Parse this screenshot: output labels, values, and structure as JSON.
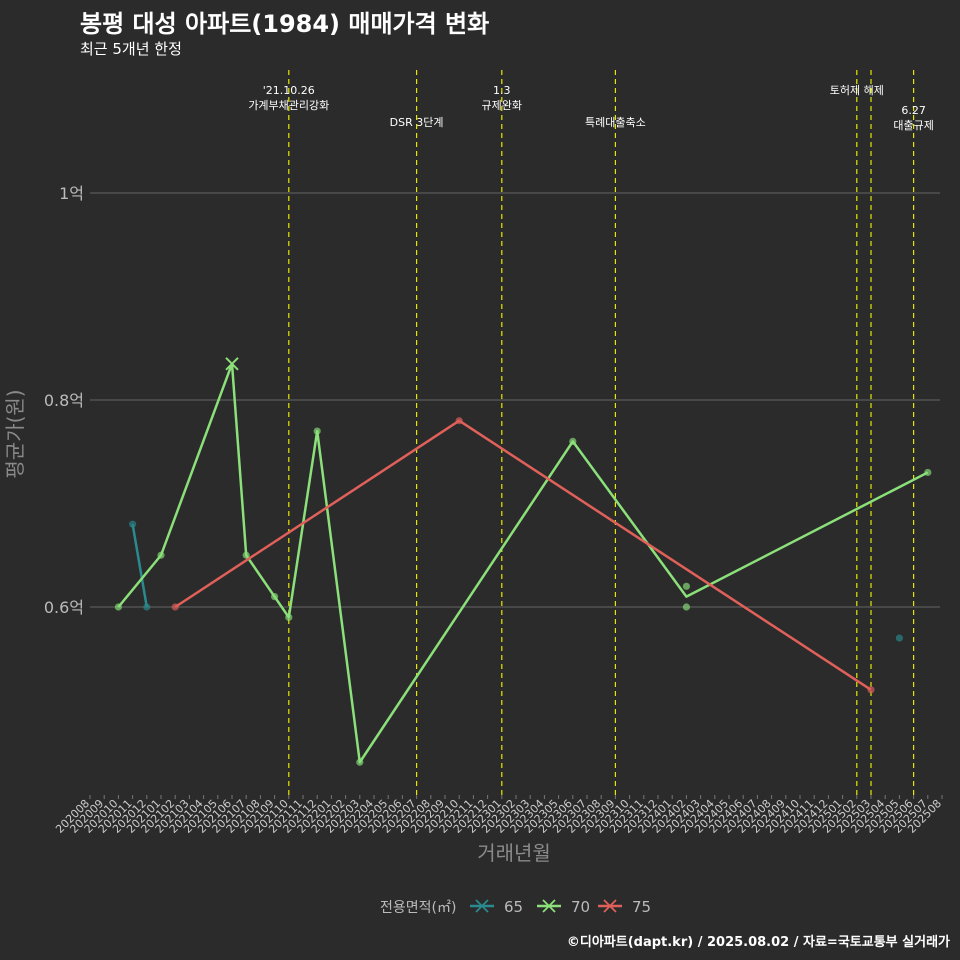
{
  "title": "봉평 대성 아파트(1984) 매매가격 변화",
  "subtitle": "최근 5개년 한정",
  "caption": "©디아파트(dapt.kr) / 2025.08.02 / 자료=국토교통부 실거래가",
  "chart_data": {
    "type": "line",
    "xlabel": "거래년월",
    "ylabel": "평균가(원)",
    "x_categories": [
      "202008",
      "202009",
      "202010",
      "202011",
      "202012",
      "202101",
      "202102",
      "202103",
      "202104",
      "202105",
      "202106",
      "202107",
      "202108",
      "202109",
      "202110",
      "202111",
      "202112",
      "202201",
      "202202",
      "202203",
      "202204",
      "202205",
      "202206",
      "202207",
      "202208",
      "202209",
      "202210",
      "202211",
      "202212",
      "202301",
      "202302",
      "202303",
      "202304",
      "202305",
      "202306",
      "202307",
      "202308",
      "202309",
      "202310",
      "202311",
      "202312",
      "202401",
      "202402",
      "202403",
      "202404",
      "202405",
      "202406",
      "202407",
      "202408",
      "202409",
      "202410",
      "202411",
      "202412",
      "202501",
      "202502",
      "202503",
      "202504",
      "202505",
      "202506",
      "202507",
      "202508"
    ],
    "y_ticks": [
      {
        "value": 0.6,
        "label": "0.6억"
      },
      {
        "value": 0.8,
        "label": "0.8억"
      },
      {
        "value": 1.0,
        "label": "1억"
      }
    ],
    "ylim": [
      0.42,
      1.12
    ],
    "grid": true,
    "legend": {
      "title": "전용면적(㎡)",
      "position": "bottom"
    },
    "series": [
      {
        "name": "65",
        "color": "#2a8a8e",
        "line": [
          {
            "x": "202011",
            "y": 0.68
          },
          {
            "x": "202012",
            "y": 0.6
          }
        ],
        "points": [
          {
            "x": "202011",
            "y": 0.68
          },
          {
            "x": "202012",
            "y": 0.6
          },
          {
            "x": "202505",
            "y": 0.57
          }
        ],
        "marks": []
      },
      {
        "name": "70",
        "color": "#8be07a",
        "line": [
          {
            "x": "202010",
            "y": 0.6
          },
          {
            "x": "202101",
            "y": 0.65
          },
          {
            "x": "202106",
            "y": 0.835
          },
          {
            "x": "202107",
            "y": 0.65
          },
          {
            "x": "202109",
            "y": 0.61
          },
          {
            "x": "202110",
            "y": 0.59
          },
          {
            "x": "202112",
            "y": 0.77
          },
          {
            "x": "202203",
            "y": 0.45
          },
          {
            "x": "202306",
            "y": 0.76
          },
          {
            "x": "202402",
            "y": 0.61
          },
          {
            "x": "202507",
            "y": 0.73
          }
        ],
        "points": [
          {
            "x": "202010",
            "y": 0.6
          },
          {
            "x": "202101",
            "y": 0.65
          },
          {
            "x": "202107",
            "y": 0.65
          },
          {
            "x": "202109",
            "y": 0.61
          },
          {
            "x": "202110",
            "y": 0.59
          },
          {
            "x": "202112",
            "y": 0.77
          },
          {
            "x": "202203",
            "y": 0.45
          },
          {
            "x": "202306",
            "y": 0.76
          },
          {
            "x": "202402",
            "y": 0.62
          },
          {
            "x": "202402",
            "y": 0.6
          },
          {
            "x": "202507",
            "y": 0.73
          }
        ],
        "marks": [
          {
            "x": "202106",
            "y": 0.835
          }
        ]
      },
      {
        "name": "75",
        "color": "#e0605a",
        "line": [
          {
            "x": "202102",
            "y": 0.6
          },
          {
            "x": "202210",
            "y": 0.78
          },
          {
            "x": "202503",
            "y": 0.52
          }
        ],
        "points": [
          {
            "x": "202102",
            "y": 0.6
          },
          {
            "x": "202210",
            "y": 0.78
          },
          {
            "x": "202503",
            "y": 0.52
          }
        ],
        "marks": []
      }
    ],
    "events": [
      {
        "x": "202110",
        "lines": [
          "'21.10.26",
          "가계부채관리강화"
        ],
        "row": 0
      },
      {
        "x": "202207",
        "lines": [
          "DSR 3단계"
        ],
        "row": 1
      },
      {
        "x": "202301",
        "lines": [
          "1.3",
          "규제완화"
        ],
        "row": 0
      },
      {
        "x": "202309",
        "lines": [
          "특례대출축소"
        ],
        "row": 1
      },
      {
        "x": "202502",
        "lines": [
          "토허제 해제"
        ],
        "row": 0
      },
      {
        "x": "202503",
        "lines": [],
        "row": 0
      },
      {
        "x": "202506",
        "lines": [
          "6.27",
          "대출규제"
        ],
        "row": 1
      }
    ]
  }
}
